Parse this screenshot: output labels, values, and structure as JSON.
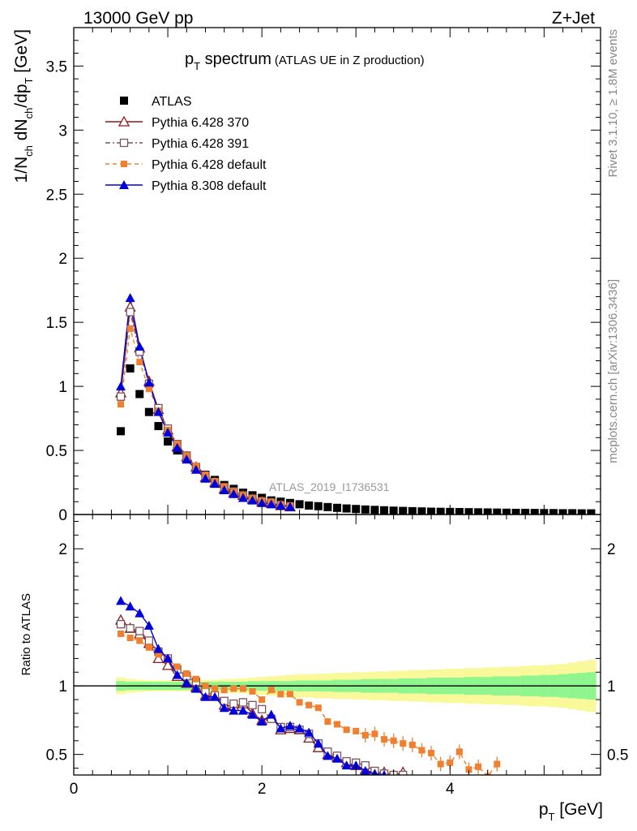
{
  "header": {
    "energy": "13000 GeV pp",
    "process": "Z+Jet"
  },
  "side": {
    "rivet": "Rivet 3.1.10, ≥ 1.8M events",
    "mcplots": "mcplots.cern.ch [arXiv:1306.3436]"
  },
  "chart_data": {
    "type": "scatter",
    "title": "p_T spectrum",
    "title_note": "(ATLAS UE in Z production)",
    "analysis_label": "ATLAS_2019_I1736531",
    "xlabel": "p_T [GeV]",
    "ylabel": "1/N_ch dN_ch/dp_T [GeV]",
    "ratio_ylabel": "Ratio to ATLAS",
    "xlim": [
      0,
      5.6
    ],
    "ylim": [
      0,
      3.8
    ],
    "ratio_ylim": [
      0.35,
      2.25
    ],
    "x_ticks": [
      0,
      2,
      4
    ],
    "y_ticks": [
      0,
      0.5,
      1,
      1.5,
      2,
      2.5,
      3,
      3.5
    ],
    "ratio_ticks": [
      0.5,
      1,
      2
    ],
    "legend_position": "top-left",
    "x": [
      0.5,
      0.6,
      0.7,
      0.8,
      0.9,
      1.0,
      1.1,
      1.2,
      1.3,
      1.4,
      1.5,
      1.6,
      1.7,
      1.8,
      1.9,
      2.0,
      2.1,
      2.2,
      2.3,
      2.4,
      2.5,
      2.6,
      2.7,
      2.8,
      2.9,
      3.0,
      3.1,
      3.2,
      3.3,
      3.4,
      3.5,
      3.6,
      3.7,
      3.8,
      3.9,
      4.0,
      4.1,
      4.2,
      4.3,
      4.4,
      4.5,
      4.6,
      4.7,
      4.8,
      4.9,
      5.0,
      5.1,
      5.2,
      5.3,
      5.4,
      5.5
    ],
    "series": [
      {
        "name": "ATLAS",
        "color": "#000000",
        "marker": "square-filled",
        "values": [
          0.65,
          1.14,
          0.94,
          0.8,
          0.69,
          0.57,
          0.5,
          0.43,
          0.37,
          0.31,
          0.27,
          0.23,
          0.2,
          0.17,
          0.15,
          0.13,
          0.11,
          0.1,
          0.09,
          0.08,
          0.07,
          0.065,
          0.058,
          0.052,
          0.047,
          0.043,
          0.039,
          0.036,
          0.033,
          0.03,
          0.028,
          0.026,
          0.024,
          0.022,
          0.021,
          0.02,
          0.019,
          0.018,
          0.017,
          0.016,
          0.015,
          0.014,
          0.013,
          0.013,
          0.012,
          0.011,
          0.011,
          0.01,
          0.01,
          0.009,
          0.009
        ],
        "ratio": []
      },
      {
        "name": "Pythia 6.428 370",
        "color": "#8b1a1a",
        "marker": "triangle-open",
        "dash": "",
        "values": [
          0.95,
          1.62,
          1.3,
          1.04,
          0.82,
          0.66,
          0.53,
          0.45,
          0.37,
          0.29,
          0.25,
          0.2,
          0.17,
          0.15,
          0.12,
          0.1,
          0.09,
          0.07,
          0.06
        ],
        "ratio": [
          1.48,
          1.42,
          1.38,
          1.31,
          1.2,
          1.15,
          1.07,
          1.02,
          0.99,
          0.93,
          0.93,
          0.86,
          0.85,
          0.87,
          0.8,
          0.75,
          0.78,
          0.68,
          0.69,
          0.68,
          0.62,
          0.55,
          0.5,
          0.48,
          0.44,
          0.42,
          0.39,
          0.36,
          0.37,
          0.35,
          0.37
        ]
      },
      {
        "name": "Pythia 6.428 391",
        "color": "#7a5560",
        "marker": "square-open",
        "dash": "6,3,2,3",
        "values": [
          0.92,
          1.58,
          1.27,
          1.02,
          0.83,
          0.67,
          0.55,
          0.46,
          0.37,
          0.3,
          0.25,
          0.21,
          0.18,
          0.15,
          0.12,
          0.1,
          0.09,
          0.07,
          0.06
        ],
        "ratio": [
          1.45,
          1.42,
          1.4,
          1.33,
          1.25,
          1.2,
          1.12,
          1.07,
          1.03,
          0.96,
          0.93,
          0.89,
          0.87,
          0.88,
          0.86,
          0.83,
          0.76,
          0.7,
          0.7,
          0.68,
          0.65,
          0.58,
          0.52,
          0.49,
          0.45,
          0.44,
          0.42,
          0.38,
          0.36,
          0.35,
          0.35
        ]
      },
      {
        "name": "Pythia 6.428 default",
        "color": "#f08030",
        "marker": "square-filled-small",
        "dash": "5,4",
        "values": [
          0.86,
          1.45,
          1.19,
          0.98,
          0.81,
          0.66,
          0.55,
          0.46,
          0.38,
          0.31,
          0.26,
          0.22,
          0.18,
          0.15,
          0.13,
          0.11,
          0.1,
          0.08,
          0.07
        ],
        "ratio": [
          1.38,
          1.35,
          1.33,
          1.28,
          1.23,
          1.19,
          1.14,
          1.09,
          1.05,
          1.0,
          0.98,
          0.97,
          0.98,
          0.98,
          0.96,
          0.9,
          0.97,
          0.94,
          0.94,
          0.88,
          0.86,
          0.84,
          0.74,
          0.72,
          0.68,
          0.67,
          0.64,
          0.65,
          0.61,
          0.6,
          0.58,
          0.57,
          0.53,
          0.51,
          0.43,
          0.44,
          0.52,
          0.39,
          0.41,
          0.34,
          0.43
        ]
      },
      {
        "name": "Pythia 8.308 default",
        "color": "#0000dd",
        "marker": "triangle-filled",
        "dash": "",
        "values": [
          1.0,
          1.69,
          1.31,
          1.03,
          0.8,
          0.64,
          0.52,
          0.43,
          0.35,
          0.28,
          0.24,
          0.19,
          0.16,
          0.13,
          0.11,
          0.09,
          0.08,
          0.07,
          0.06
        ],
        "ratio": [
          1.62,
          1.58,
          1.53,
          1.44,
          1.27,
          1.2,
          1.08,
          1.02,
          0.98,
          0.92,
          0.92,
          0.84,
          0.82,
          0.82,
          0.79,
          0.74,
          0.79,
          0.69,
          0.71,
          0.69,
          0.66,
          0.58,
          0.49,
          0.47,
          0.42,
          0.42,
          0.38,
          0.36,
          0.35
        ]
      }
    ],
    "uncertainty_band": {
      "inner_color": "#8ff58f",
      "outer_color": "#f9f99b",
      "inner_halfwidth": [
        0.035,
        0.03,
        0.03,
        0.03,
        0.03,
        0.03,
        0.03,
        0.03,
        0.03,
        0.03,
        0.03,
        0.03,
        0.03,
        0.03,
        0.035,
        0.035,
        0.035,
        0.035,
        0.035,
        0.04,
        0.04,
        0.04,
        0.04,
        0.045,
        0.045,
        0.045,
        0.05,
        0.05,
        0.05,
        0.05,
        0.055,
        0.055,
        0.055,
        0.06,
        0.06,
        0.06,
        0.06,
        0.065,
        0.065,
        0.065,
        0.07,
        0.07,
        0.07,
        0.075,
        0.075,
        0.08,
        0.08,
        0.085,
        0.09,
        0.095,
        0.1
      ],
      "outer_halfwidth": [
        0.06,
        0.05,
        0.045,
        0.04,
        0.04,
        0.04,
        0.04,
        0.04,
        0.04,
        0.045,
        0.045,
        0.05,
        0.05,
        0.055,
        0.06,
        0.065,
        0.07,
        0.075,
        0.08,
        0.085,
        0.085,
        0.09,
        0.09,
        0.095,
        0.095,
        0.1,
        0.1,
        0.105,
        0.105,
        0.11,
        0.11,
        0.115,
        0.115,
        0.12,
        0.12,
        0.125,
        0.125,
        0.13,
        0.13,
        0.135,
        0.135,
        0.14,
        0.14,
        0.145,
        0.15,
        0.15,
        0.155,
        0.16,
        0.17,
        0.18,
        0.19
      ]
    }
  }
}
